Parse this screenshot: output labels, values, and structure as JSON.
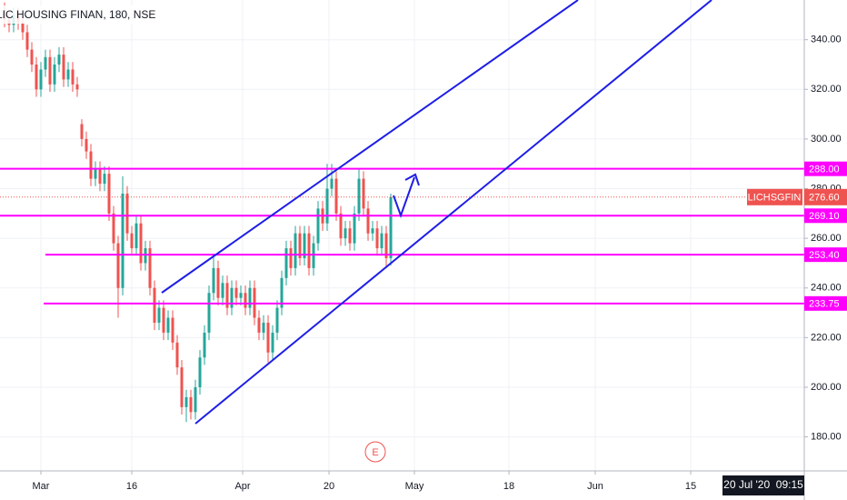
{
  "chart_data": {
    "type": "candlestick",
    "title": "LIC HOUSING FINAN, 180, NSE",
    "up_color": "#26a69a",
    "down_color": "#ef5350",
    "open": [
      352,
      348,
      346,
      350,
      347,
      343,
      336,
      330,
      320,
      328,
      333,
      322,
      330,
      334,
      324,
      328,
      322,
      306,
      300,
      295,
      284,
      288,
      282,
      286,
      270,
      258,
      240,
      278,
      262,
      256,
      266,
      250,
      256,
      240,
      226,
      232,
      222,
      228,
      218,
      208,
      192,
      196,
      190,
      200,
      212,
      222,
      238,
      248,
      236,
      242,
      232,
      240,
      236,
      238,
      232,
      240,
      228,
      222,
      226,
      214,
      222,
      232,
      244,
      256,
      248,
      262,
      252,
      262,
      248,
      258,
      272,
      266,
      280,
      284,
      270,
      260,
      264,
      258,
      270,
      284,
      272,
      262,
      264,
      256,
      262,
      252
    ],
    "high": [
      355,
      351,
      353,
      353,
      350,
      346,
      339,
      333,
      331,
      336,
      336,
      333,
      337,
      337,
      331,
      331,
      325,
      308,
      303,
      298,
      291,
      291,
      289,
      289,
      273,
      261,
      285,
      281,
      265,
      269,
      269,
      259,
      259,
      243,
      235,
      235,
      231,
      231,
      221,
      211,
      199,
      199,
      203,
      215,
      225,
      241,
      253,
      251,
      245,
      245,
      243,
      243,
      241,
      241,
      243,
      243,
      231,
      229,
      229,
      225,
      235,
      247,
      259,
      259,
      265,
      265,
      265,
      265,
      261,
      275,
      275,
      290,
      290,
      287,
      273,
      267,
      267,
      273,
      288,
      287,
      275,
      267,
      267,
      265,
      265,
      278
    ],
    "low": [
      345,
      343,
      343,
      344,
      340,
      333,
      327,
      317,
      317,
      325,
      319,
      319,
      327,
      321,
      321,
      319,
      317,
      297,
      292,
      281,
      281,
      279,
      279,
      267,
      255,
      228,
      237,
      259,
      253,
      253,
      247,
      247,
      237,
      223,
      223,
      219,
      219,
      215,
      205,
      189,
      186,
      187,
      187,
      197,
      209,
      219,
      235,
      233,
      233,
      229,
      229,
      233,
      233,
      229,
      229,
      225,
      219,
      219,
      210,
      211,
      219,
      229,
      241,
      245,
      245,
      249,
      249,
      245,
      245,
      255,
      263,
      263,
      277,
      267,
      257,
      257,
      255,
      255,
      267,
      269,
      259,
      259,
      253,
      253,
      248,
      249
    ],
    "close": [
      348,
      346,
      350,
      347,
      343,
      336,
      330,
      320,
      328,
      333,
      322,
      330,
      334,
      324,
      328,
      322,
      320,
      300,
      295,
      284,
      288,
      282,
      286,
      270,
      258,
      240,
      278,
      262,
      256,
      266,
      250,
      256,
      240,
      226,
      232,
      222,
      228,
      218,
      208,
      192,
      196,
      190,
      200,
      212,
      222,
      238,
      248,
      236,
      242,
      232,
      240,
      236,
      238,
      232,
      240,
      228,
      222,
      226,
      214,
      222,
      232,
      244,
      256,
      248,
      262,
      252,
      262,
      248,
      258,
      272,
      266,
      280,
      284,
      270,
      260,
      264,
      258,
      270,
      284,
      272,
      262,
      264,
      256,
      262,
      252,
      276.6
    ],
    "xlim": [
      -1,
      176
    ],
    "xticks": [
      {
        "value": 8,
        "label": "Mar"
      },
      {
        "value": 28,
        "label": "16"
      },
      {
        "value": 52.4,
        "label": "Apr"
      },
      {
        "value": 71.4,
        "label": "20"
      },
      {
        "value": 90.2,
        "label": "May"
      },
      {
        "value": 111,
        "label": "18"
      },
      {
        "value": 130,
        "label": "Jun"
      },
      {
        "value": 151,
        "label": "15"
      }
    ],
    "ylim": [
      166.3,
      356
    ],
    "yticks": [
      {
        "value": 180,
        "label": "180.00"
      },
      {
        "value": 200,
        "label": "200.00"
      },
      {
        "value": 220,
        "label": "220.00"
      },
      {
        "value": 240,
        "label": "240.00"
      },
      {
        "value": 260,
        "label": "260.00"
      },
      {
        "value": 280,
        "label": "280.00"
      },
      {
        "value": 300,
        "label": "300.00"
      },
      {
        "value": 320,
        "label": "320.00"
      },
      {
        "value": 340,
        "label": "340.00"
      }
    ],
    "grid": true,
    "hline_color": "#ff00ff",
    "hlines": [
      {
        "value": 288,
        "label": "288.00"
      },
      {
        "value": 269.1,
        "label": "269.10"
      },
      {
        "value": 253.4,
        "label": "253.40"
      },
      {
        "value": 233.75,
        "label": "233.75"
      }
    ],
    "last_price": {
      "name": "LICHSGFIN",
      "value": 276.6,
      "label": "276.60",
      "color": "#ef5350"
    },
    "cursor_label": "20 Jul '20  09:15",
    "event_marker": "E"
  }
}
